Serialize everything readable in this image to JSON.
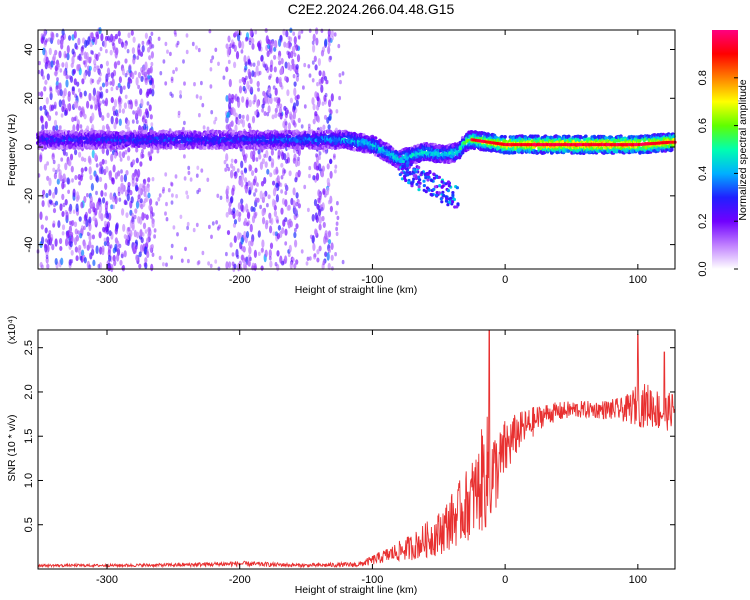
{
  "title": "C2E2.2024.266.04.48.G15",
  "chart_data": [
    {
      "type": "heatmap",
      "xlabel": "Height of straight line (km)",
      "ylabel": "Frequency (Hz)",
      "xlim": [
        -352,
        128
      ],
      "ylim": [
        -50,
        48
      ],
      "x_ticks": [
        "-300",
        "-200",
        "-100",
        "0",
        "100"
      ],
      "y_ticks": [
        "-40",
        "-20",
        "0",
        "20",
        "40"
      ],
      "colorbar": {
        "label": "Normalized spectral amplitude",
        "range": [
          0.0,
          1.0
        ],
        "ticks": [
          "0.0",
          "0.2",
          "0.4",
          "0.6",
          "0.8"
        ],
        "colors": [
          "#ffffff",
          "#c080ff",
          "#7000ff",
          "#2020ff",
          "#00b0ff",
          "#00ffb0",
          "#60ff00",
          "#ffff00",
          "#ff8000",
          "#ff0000",
          "#ff0080"
        ]
      },
      "signal_ridge": {
        "x": [
          -350,
          -300,
          -250,
          -200,
          -150,
          -120,
          -100,
          -80,
          -60,
          -45,
          -35,
          -30,
          -25,
          0,
          50,
          100,
          125
        ],
        "frequency": [
          3,
          3,
          3,
          3,
          3,
          3,
          1,
          -5,
          -2,
          -3,
          -2,
          2,
          3,
          1,
          1,
          1,
          2
        ],
        "amplitude": [
          0.3,
          0.3,
          0.32,
          0.32,
          0.35,
          0.4,
          0.45,
          0.45,
          0.5,
          0.45,
          0.5,
          0.55,
          0.65,
          0.8,
          0.85,
          0.85,
          0.8
        ]
      },
      "noise_bands_x": [
        [
          -350,
          -265
        ],
        [
          -210,
          -155
        ],
        [
          -145,
          -130
        ]
      ]
    },
    {
      "type": "line",
      "xlabel": "Height of straight line (km)",
      "ylabel": "SNR (10 * v/v)",
      "y_multiplier": "(x10⁴)",
      "xlim": [
        -352,
        128
      ],
      "ylim": [
        0,
        27000
      ],
      "x_ticks": [
        "-300",
        "-200",
        "-100",
        "0",
        "100"
      ],
      "y_ticks": [
        "0.5",
        "1.0",
        "1.5",
        "2.0",
        "2.5"
      ],
      "color": "#e83030",
      "x": [
        -350,
        -300,
        -250,
        -200,
        -150,
        -110,
        -90,
        -70,
        -50,
        -40,
        -30,
        -20,
        -15,
        -10,
        -5,
        0,
        10,
        20,
        30,
        50,
        70,
        90,
        100,
        110,
        120,
        125
      ],
      "y": [
        400,
        400,
        450,
        600,
        400,
        500,
        1500,
        2500,
        4000,
        5500,
        7000,
        9000,
        11000,
        10500,
        11500,
        13500,
        15500,
        16500,
        17500,
        18000,
        18000,
        18000,
        18500,
        18500,
        17500,
        18000
      ],
      "spread": [
        150,
        150,
        200,
        300,
        200,
        300,
        800,
        1500,
        2500,
        3200,
        4000,
        5000,
        7000,
        5500,
        4000,
        3500,
        2200,
        1800,
        1200,
        1000,
        1000,
        1400,
        2500,
        2500,
        2200,
        2000
      ],
      "annotations": [
        {
          "x": -12,
          "y": 27000,
          "note": "spike"
        },
        {
          "x": 100,
          "y": 26500,
          "note": "spike"
        },
        {
          "x": 120,
          "y": 24500,
          "note": "spike"
        }
      ]
    }
  ]
}
